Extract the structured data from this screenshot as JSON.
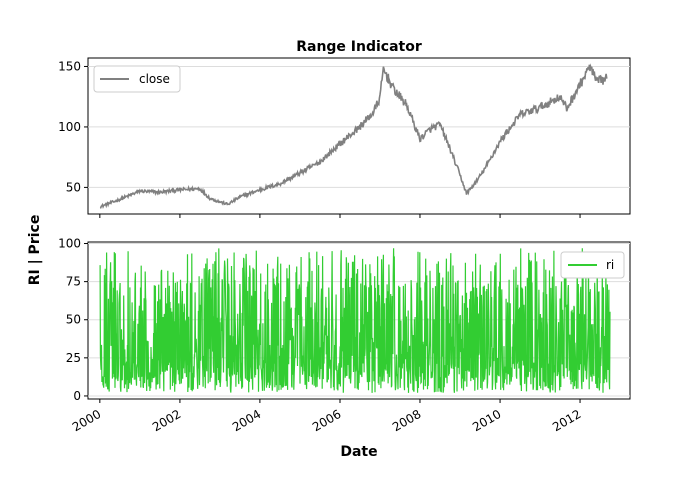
{
  "chart_data": [
    {
      "type": "line",
      "title": "Range Indicator",
      "ylim": [
        28,
        157
      ],
      "yticks": [
        50,
        100,
        150
      ],
      "grid": true,
      "legend_position": "upper-left",
      "series": [
        {
          "name": "close",
          "color": "#808080",
          "x": [
            "2000-01-03",
            "2000-07-01",
            "2001-01-01",
            "2001-07-01",
            "2002-01-01",
            "2002-07-01",
            "2002-10-01",
            "2003-01-01",
            "2003-03-15",
            "2003-07-01",
            "2004-01-01",
            "2004-07-01",
            "2005-01-01",
            "2005-07-01",
            "2006-01-01",
            "2006-07-01",
            "2006-11-01",
            "2007-01-01",
            "2007-02-01",
            "2007-05-01",
            "2007-09-01",
            "2008-01-01",
            "2008-04-01",
            "2008-07-01",
            "2008-10-01",
            "2009-01-01",
            "2009-03-01",
            "2009-06-01",
            "2009-09-01",
            "2010-01-01",
            "2010-07-01",
            "2011-01-01",
            "2011-07-01",
            "2011-09-01",
            "2012-01-01",
            "2012-04-01",
            "2012-06-01",
            "2012-09-01"
          ],
          "values": [
            34,
            40,
            47,
            46,
            48,
            49,
            41,
            38,
            36,
            42,
            48,
            53,
            62,
            71,
            86,
            100,
            112,
            124,
            148,
            132,
            118,
            90,
            98,
            102,
            82,
            60,
            45,
            55,
            68,
            88,
            110,
            116,
            125,
            115,
            135,
            150,
            137,
            140
          ]
        }
      ]
    },
    {
      "type": "line",
      "ylim": [
        -2,
        101
      ],
      "yticks": [
        0,
        25,
        50,
        75,
        100
      ],
      "grid": true,
      "legend_position": "upper-right",
      "series": [
        {
          "name": "ri",
          "color": "#32cd32",
          "x_range": [
            "2000-01-03",
            "2012-09-30"
          ],
          "value_range": [
            2,
            97
          ],
          "typical_band": [
            10,
            80
          ],
          "mean": 40
        }
      ]
    }
  ],
  "shared_axis": {
    "xlabel": "Date",
    "ylabel": "RI | Price",
    "xticks": [
      "2000",
      "2002",
      "2004",
      "2006",
      "2008",
      "2010",
      "2012"
    ]
  }
}
